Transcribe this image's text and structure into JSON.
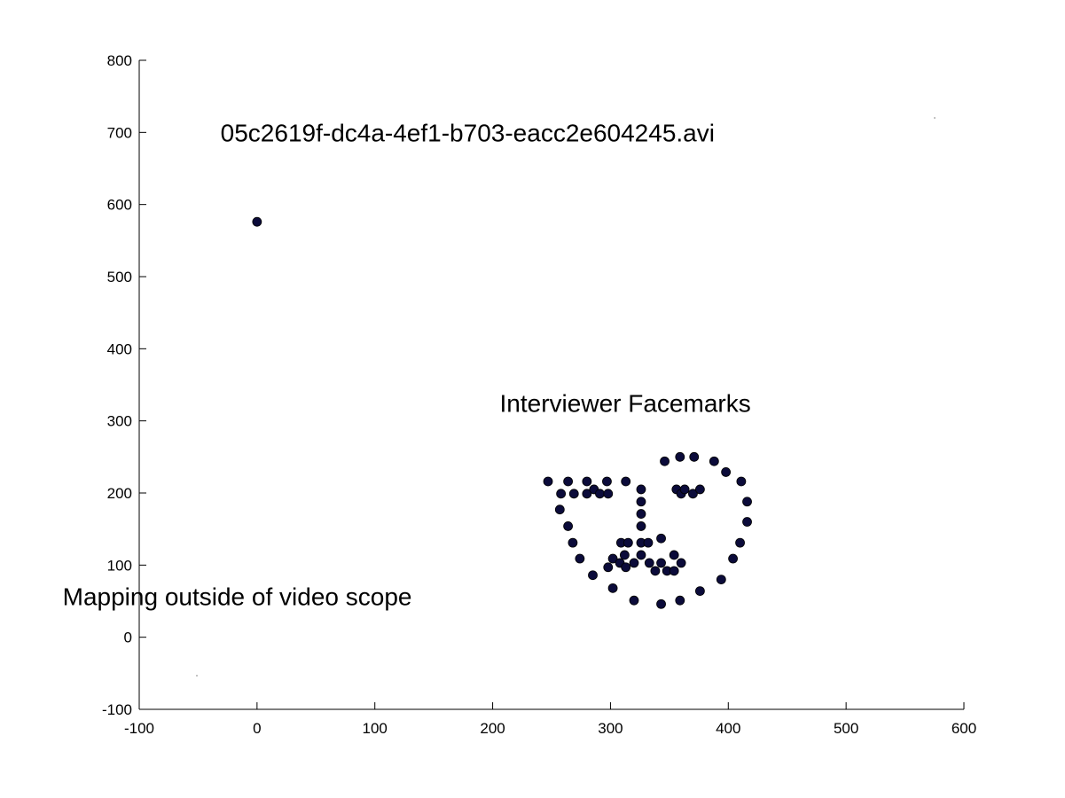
{
  "chart_data": {
    "type": "scatter",
    "title": "",
    "xlabel": "",
    "ylabel": "",
    "xlim": [
      -100,
      600
    ],
    "ylim": [
      -100,
      800
    ],
    "x_ticks": [
      -100,
      0,
      100,
      200,
      300,
      400,
      500,
      600
    ],
    "y_ticks": [
      -100,
      0,
      100,
      200,
      300,
      400,
      500,
      600,
      700,
      800
    ],
    "grid": false,
    "marker_color": "#0b0b3a",
    "annotations": [
      {
        "text": "05c2619f-dc4a-4ef1-b703-eacc2e604245.avi",
        "x": -31,
        "y": 700
      },
      {
        "text": "Interviewer Facemarks",
        "x": 206,
        "y": 325
      },
      {
        "text": "Mapping outside of video scope",
        "x": -165,
        "y": 57
      }
    ],
    "series": [
      {
        "points": [
          [
            0,
            576
          ],
          [
            247,
            216
          ],
          [
            258,
            199
          ],
          [
            257,
            177
          ],
          [
            264,
            154
          ],
          [
            268,
            131
          ],
          [
            274,
            109
          ],
          [
            285,
            86
          ],
          [
            302,
            68
          ],
          [
            320,
            51
          ],
          [
            343,
            46
          ],
          [
            359,
            51
          ],
          [
            376,
            64
          ],
          [
            394,
            80
          ],
          [
            404,
            109
          ],
          [
            410,
            131
          ],
          [
            416,
            160
          ],
          [
            416,
            188
          ],
          [
            411,
            216
          ],
          [
            398,
            229
          ],
          [
            388,
            244
          ],
          [
            371,
            250
          ],
          [
            359,
            250
          ],
          [
            346,
            244
          ],
          [
            264,
            216
          ],
          [
            269,
            199
          ],
          [
            280,
            216
          ],
          [
            280,
            199
          ],
          [
            286,
            205
          ],
          [
            291,
            199
          ],
          [
            297,
            216
          ],
          [
            298,
            199
          ],
          [
            313,
            216
          ],
          [
            326,
            205
          ],
          [
            326,
            188
          ],
          [
            326,
            171
          ],
          [
            326,
            154
          ],
          [
            309,
            131
          ],
          [
            315,
            131
          ],
          [
            326,
            131
          ],
          [
            332,
            131
          ],
          [
            343,
            137
          ],
          [
            298,
            97
          ],
          [
            302,
            109
          ],
          [
            308,
            103
          ],
          [
            312,
            114
          ],
          [
            313,
            97
          ],
          [
            320,
            103
          ],
          [
            326,
            114
          ],
          [
            333,
            103
          ],
          [
            338,
            92
          ],
          [
            343,
            103
          ],
          [
            348,
            92
          ],
          [
            354,
            114
          ],
          [
            354,
            92
          ],
          [
            360,
            103
          ],
          [
            356,
            205
          ],
          [
            360,
            199
          ],
          [
            363,
            205
          ],
          [
            370,
            199
          ],
          [
            376,
            205
          ]
        ]
      }
    ]
  }
}
